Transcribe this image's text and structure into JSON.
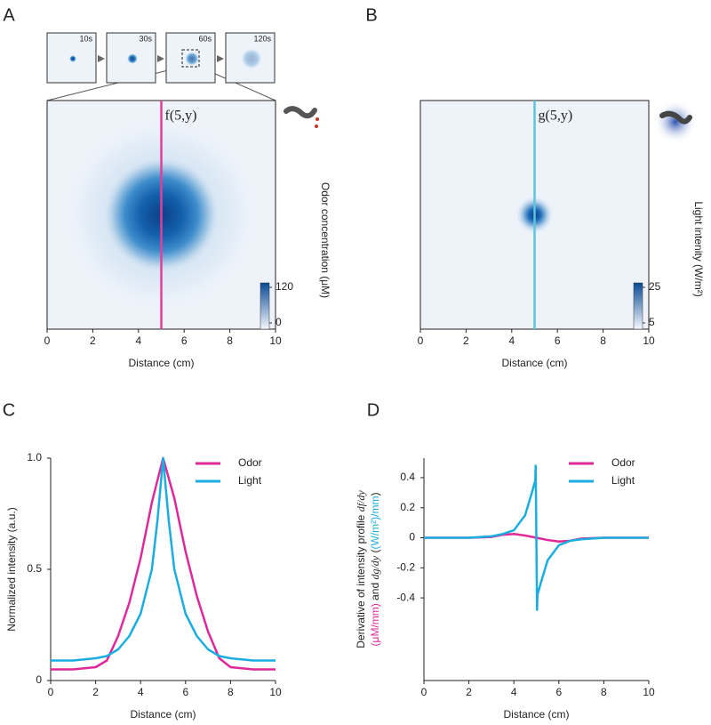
{
  "chart_data": [
    {
      "type": "heatmap",
      "panel_label": "A",
      "time_points": [
        "10s",
        "30s",
        "60s",
        "120s"
      ],
      "annotation": "f(5,y)",
      "line_x": 5,
      "line_color": "#e0409a",
      "xlabel": "Distance (cm)",
      "xlim": [
        0,
        10
      ],
      "xticks": [
        0,
        2,
        4,
        6,
        8,
        10
      ],
      "colorbar": {
        "label": "Odor concentration (μM)",
        "lim": [
          0,
          120
        ],
        "ticks": [
          0,
          120
        ],
        "colors": [
          "#f4f7fc",
          "#0b4a96"
        ]
      }
    },
    {
      "type": "heatmap",
      "panel_label": "B",
      "annotation": "g(5,y)",
      "line_x": 5,
      "line_color": "#5fc3dc",
      "xlabel": "Distance (cm)",
      "xlim": [
        0,
        10
      ],
      "xticks": [
        0,
        2,
        4,
        6,
        8,
        10
      ],
      "colorbar": {
        "label": "Light intenity (W/m²)",
        "lim": [
          5,
          25
        ],
        "ticks": [
          5,
          25
        ],
        "colors": [
          "#f4f7fc",
          "#0b4a96"
        ]
      }
    },
    {
      "type": "line",
      "panel_label": "C",
      "ylabel": "Normalized intensity (a.u.)",
      "xlabel": "Distance (cm)",
      "xlim": [
        0,
        10
      ],
      "xticks": [
        0,
        2,
        4,
        6,
        8,
        10
      ],
      "ylim": [
        0,
        1
      ],
      "yticks": [
        0,
        0.5,
        {
          "value": 1,
          "label": "1.0"
        }
      ],
      "series": [
        {
          "name": "Odor",
          "color": "#e0289a",
          "x": [
            0,
            1,
            2,
            2.5,
            3,
            3.5,
            4,
            4.5,
            5,
            5.5,
            6,
            6.5,
            7,
            7.5,
            8,
            9,
            10
          ],
          "values": [
            0.05,
            0.05,
            0.06,
            0.09,
            0.2,
            0.35,
            0.55,
            0.8,
            1.0,
            0.82,
            0.58,
            0.38,
            0.22,
            0.1,
            0.06,
            0.05,
            0.05
          ]
        },
        {
          "name": "Light",
          "color": "#1aaee0",
          "x": [
            0,
            1,
            2,
            2.5,
            3,
            3.5,
            4,
            4.5,
            4.75,
            5,
            5.25,
            5.5,
            6,
            6.5,
            7,
            7.5,
            8,
            9,
            10
          ],
          "values": [
            0.09,
            0.09,
            0.1,
            0.11,
            0.14,
            0.2,
            0.3,
            0.5,
            0.72,
            1.0,
            0.72,
            0.5,
            0.3,
            0.2,
            0.14,
            0.11,
            0.1,
            0.09,
            0.09
          ]
        }
      ]
    },
    {
      "type": "line",
      "panel_label": "D",
      "ylabel_lines": [
        [
          {
            "text": "Derivative of intensity profile "
          },
          {
            "text": "df/dy",
            "italic": true
          }
        ],
        [
          {
            "text": "(μM/mm)",
            "color": "#e0289a"
          },
          {
            "text": " and "
          },
          {
            "text": "dg/dy",
            "italic": true
          },
          {
            "text": " ("
          },
          {
            "text": "(W/m²)/mm",
            "color": "#1aaee0"
          },
          {
            "text": ")"
          }
        ]
      ],
      "xlabel": "Distance (cm)",
      "xlim": [
        0,
        10
      ],
      "xticks": [
        0,
        2,
        4,
        6,
        8,
        10
      ],
      "ylim": [
        -0.95,
        0.53
      ],
      "yticks": [
        -0.4,
        -0.2,
        0,
        0.2,
        0.4
      ],
      "series": [
        {
          "name": "Odor",
          "color": "#e0289a",
          "x": [
            0,
            2,
            3,
            3.5,
            4,
            4.5,
            5,
            5.5,
            6,
            6.5,
            7,
            8,
            10
          ],
          "values": [
            0,
            0,
            0.005,
            0.02,
            0.025,
            0.015,
            0,
            -0.015,
            -0.025,
            -0.02,
            -0.005,
            0,
            0
          ]
        },
        {
          "name": "Light",
          "color": "#1aaee0",
          "x": [
            0,
            2,
            3,
            3.5,
            4,
            4.5,
            4.8,
            4.95,
            4.97,
            5.03,
            5.05,
            5.2,
            5.5,
            6,
            6.5,
            7,
            8,
            10
          ],
          "values": [
            0,
            0,
            0.01,
            0.025,
            0.05,
            0.15,
            0.3,
            0.38,
            0.48,
            -0.48,
            -0.38,
            -0.3,
            -0.15,
            -0.05,
            -0.02,
            -0.01,
            0,
            0
          ]
        }
      ]
    }
  ]
}
